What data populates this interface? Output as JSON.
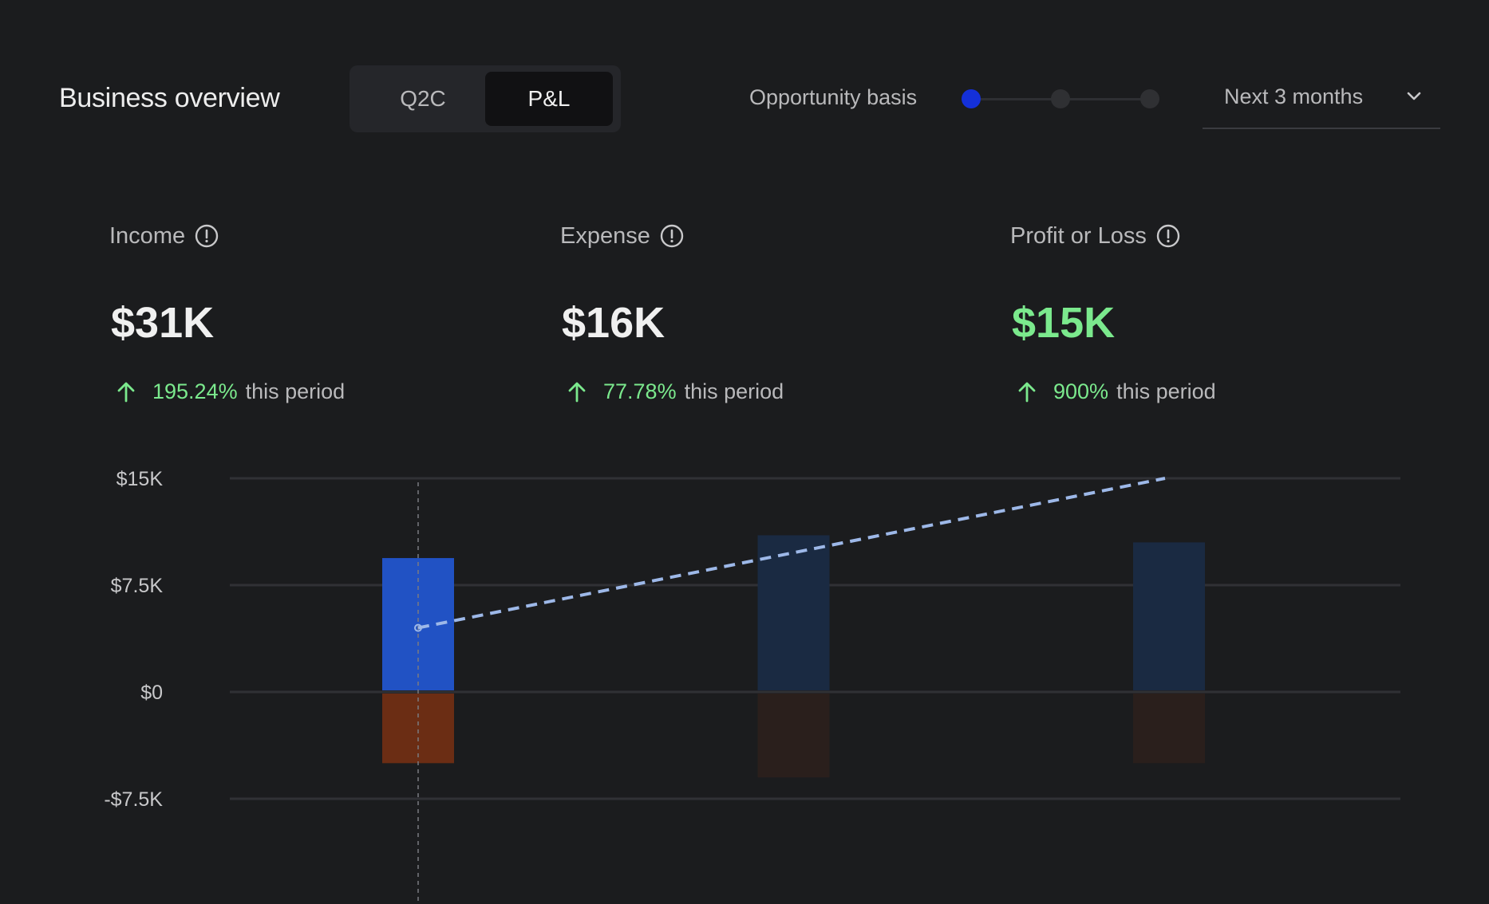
{
  "header": {
    "title": "Business overview",
    "tabs": [
      {
        "label": "Q2C",
        "active": false
      },
      {
        "label": "P&L",
        "active": true
      }
    ],
    "opportunity_basis": {
      "label": "Opportunity basis",
      "steps": 3,
      "selected_index": 0
    },
    "period_select": {
      "value": "Next 3 months",
      "icon": "chevron-down-icon"
    }
  },
  "metrics": [
    {
      "label": "Income",
      "value": "$31K",
      "change": "195.24%",
      "change_suffix": "this period",
      "icon": "info-icon"
    },
    {
      "label": "Expense",
      "value": "$16K",
      "change": "77.78%",
      "change_suffix": "this period",
      "icon": "info-icon"
    },
    {
      "label": "Profit or Loss",
      "value": "$15K",
      "change": "900%",
      "change_suffix": "this period",
      "icon": "info-icon"
    }
  ],
  "colors": {
    "background": "#1b1c1e",
    "positive": "#7be98d",
    "income_active": "#2152c4",
    "expense_active": "#6b2d14",
    "income_muted": "#1a2a42",
    "expense_muted": "#2a1f1c",
    "trend_line": "#9db8e8",
    "slider_active": "#1430d9"
  },
  "chart_data": {
    "type": "bar",
    "categories": [
      "",
      "",
      ""
    ],
    "series": [
      {
        "values": [
          9.4,
          11.0,
          10.5
        ]
      },
      {
        "values": [
          -5.0,
          -6.0,
          -5.0
        ]
      }
    ],
    "trend_line": {
      "style": "dashed",
      "points": [
        [
          0,
          4.5
        ],
        [
          2,
          15.0
        ]
      ]
    },
    "y_ticks": [
      {
        "value": 15,
        "label": "$15K"
      },
      {
        "value": 7.5,
        "label": "$7.5K"
      },
      {
        "value": 0,
        "label": "$0"
      },
      {
        "value": -7.5,
        "label": "-$7.5K"
      }
    ],
    "ylim": [
      -7.5,
      15
    ],
    "active_index": 0,
    "grid": true,
    "title": "",
    "xlabel": "",
    "ylabel": ""
  }
}
